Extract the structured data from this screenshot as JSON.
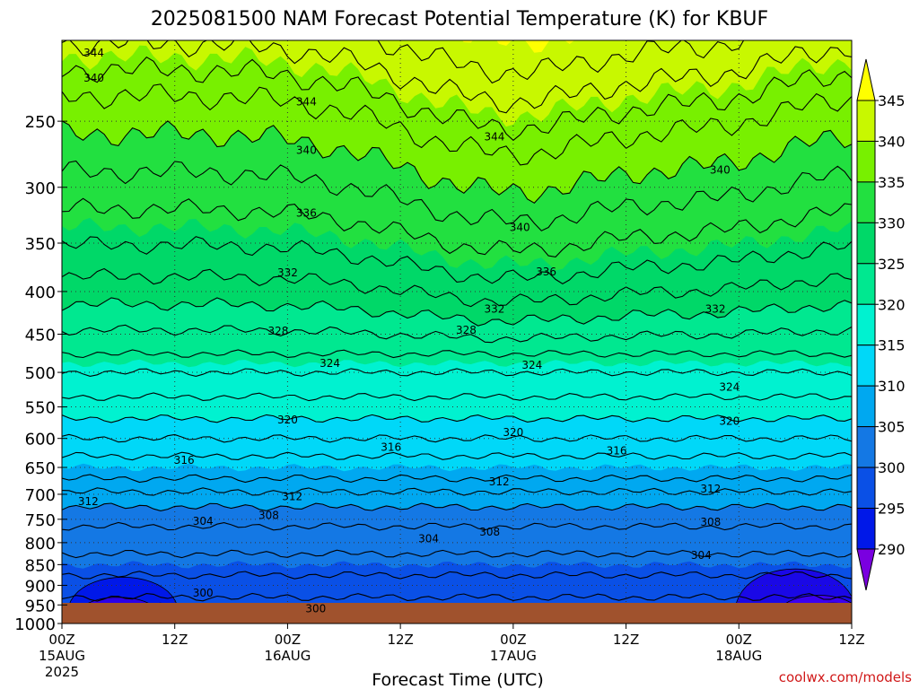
{
  "chart_data": {
    "type": "heatmap",
    "title": "2025081500 NAM Forecast Potential Temperature (K) for KBUF",
    "xlabel": "Forecast Time (UTC)",
    "ylabel": "",
    "credit": "coolwx.com/models",
    "x_range_hours": [
      0,
      84
    ],
    "x_ticks": [
      {
        "hour": 0,
        "label": "00Z",
        "date": "15AUG",
        "year": "2025"
      },
      {
        "hour": 12,
        "label": "12Z",
        "date": "",
        "year": ""
      },
      {
        "hour": 24,
        "label": "00Z",
        "date": "16AUG",
        "year": ""
      },
      {
        "hour": 36,
        "label": "12Z",
        "date": "",
        "year": ""
      },
      {
        "hour": 48,
        "label": "00Z",
        "date": "17AUG",
        "year": ""
      },
      {
        "hour": 60,
        "label": "12Z",
        "date": "",
        "year": ""
      },
      {
        "hour": 72,
        "label": "00Z",
        "date": "18AUG",
        "year": ""
      },
      {
        "hour": 84,
        "label": "12Z",
        "date": "",
        "year": ""
      }
    ],
    "y_axis": {
      "scale": "log",
      "reversed": true,
      "range_hPa": [
        1000,
        200
      ],
      "units": "hPa"
    },
    "y_ticks": [
      250,
      300,
      350,
      400,
      450,
      500,
      550,
      600,
      650,
      700,
      750,
      800,
      850,
      900,
      950,
      1000
    ],
    "grid": true,
    "colorbar": {
      "placement": "right",
      "levels": [
        290,
        295,
        300,
        305,
        310,
        315,
        320,
        325,
        330,
        335,
        340,
        345
      ],
      "labels": [
        "345",
        "340",
        "335",
        "330",
        "325",
        "320",
        "315",
        "310",
        "305",
        "300",
        "295",
        "290"
      ],
      "colors": [
        "#7a00e0",
        "#3b00f0",
        "#0018e8",
        "#0a50e6",
        "#1478e4",
        "#00a8f0",
        "#00d8f8",
        "#00f2d0",
        "#00e890",
        "#00d868",
        "#22e040",
        "#78f000",
        "#c8f800",
        "#ffff00"
      ]
    },
    "contour_interval": 4,
    "contour_labels": [
      {
        "value": 344,
        "hour": 3.4,
        "p": 207
      },
      {
        "value": 340,
        "hour": 3.4,
        "p": 222
      },
      {
        "value": 344,
        "hour": 26.0,
        "p": 237
      },
      {
        "value": 340,
        "hour": 26.0,
        "p": 271
      },
      {
        "value": 336,
        "hour": 26.0,
        "p": 322
      },
      {
        "value": 344,
        "hour": 46.0,
        "p": 261
      },
      {
        "value": 340,
        "hour": 48.7,
        "p": 335
      },
      {
        "value": 340,
        "hour": 70.0,
        "p": 286
      },
      {
        "value": 336,
        "hour": 51.5,
        "p": 379
      },
      {
        "value": 332,
        "hour": 24.0,
        "p": 380
      },
      {
        "value": 332,
        "hour": 46.0,
        "p": 420
      },
      {
        "value": 332,
        "hour": 69.5,
        "p": 420
      },
      {
        "value": 328,
        "hour": 23.0,
        "p": 446
      },
      {
        "value": 328,
        "hour": 43.0,
        "p": 445
      },
      {
        "value": 324,
        "hour": 28.5,
        "p": 488
      },
      {
        "value": 324,
        "hour": 50.0,
        "p": 490
      },
      {
        "value": 324,
        "hour": 71.0,
        "p": 521
      },
      {
        "value": 320,
        "hour": 24.0,
        "p": 570
      },
      {
        "value": 320,
        "hour": 48.0,
        "p": 590
      },
      {
        "value": 320,
        "hour": 71.0,
        "p": 572
      },
      {
        "value": 316,
        "hour": 13.0,
        "p": 637
      },
      {
        "value": 316,
        "hour": 35.0,
        "p": 615
      },
      {
        "value": 316,
        "hour": 59.0,
        "p": 621
      },
      {
        "value": 312,
        "hour": 2.8,
        "p": 714
      },
      {
        "value": 312,
        "hour": 24.5,
        "p": 704
      },
      {
        "value": 312,
        "hour": 46.5,
        "p": 676
      },
      {
        "value": 312,
        "hour": 69.0,
        "p": 690
      },
      {
        "value": 308,
        "hour": 22.0,
        "p": 742
      },
      {
        "value": 308,
        "hour": 45.5,
        "p": 777
      },
      {
        "value": 308,
        "hour": 69.0,
        "p": 756
      },
      {
        "value": 304,
        "hour": 15.0,
        "p": 754
      },
      {
        "value": 304,
        "hour": 39.0,
        "p": 791
      },
      {
        "value": 304,
        "hour": 68.0,
        "p": 828
      },
      {
        "value": 300,
        "hour": 15.0,
        "p": 919
      },
      {
        "value": 300,
        "hour": 27.0,
        "p": 960
      }
    ]
  }
}
